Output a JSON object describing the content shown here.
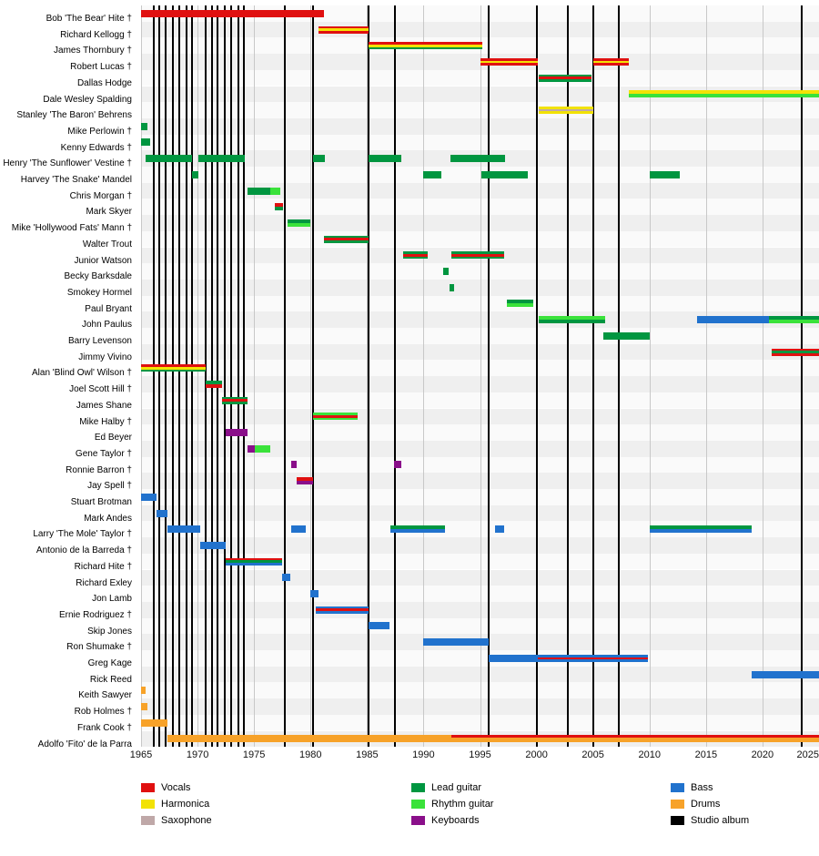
{
  "chart_data": {
    "type": "timeline",
    "description": "Band members timeline with instrument roles and studio album markers",
    "x_axis": {
      "start": 1965,
      "end": 2025,
      "tick_interval": 5,
      "ticks": [
        1965,
        1970,
        1975,
        1980,
        1985,
        1990,
        1995,
        2000,
        2005,
        2010,
        2015,
        2020,
        2025
      ]
    },
    "colors": {
      "vocals": "#e01010",
      "harmonica": "#f2e205",
      "saxophone": "#bfa8a8",
      "lead_guitar": "#009640",
      "rhythm_guitar": "#3ae23a",
      "keyboards": "#8a0f8a",
      "bass": "#2172cd",
      "drums": "#f7a229",
      "studio_album": "#000000"
    },
    "legend_columns": [
      [
        {
          "label": "Vocals",
          "key": "vocals"
        },
        {
          "label": "Harmonica",
          "key": "harmonica"
        },
        {
          "label": "Saxophone",
          "key": "saxophone"
        }
      ],
      [
        {
          "label": "Lead guitar",
          "key": "lead_guitar"
        },
        {
          "label": "Rhythm guitar",
          "key": "rhythm_guitar"
        },
        {
          "label": "Keyboards",
          "key": "keyboards"
        }
      ],
      [
        {
          "label": "Bass",
          "key": "bass"
        },
        {
          "label": "Drums",
          "key": "drums"
        },
        {
          "label": "Studio album",
          "key": "studio_album"
        }
      ]
    ],
    "album_lines": {
      "label": "Studio album",
      "years": [
        1966.1,
        1966.6,
        1967.2,
        1967.8,
        1968.4,
        1969.0,
        1969.5,
        1970.7,
        1971.3,
        1971.8,
        1972.4,
        1973.0,
        1973.6,
        1974.1,
        1977.7,
        1980.2,
        1985.1,
        1987.5,
        1995.8,
        2000.0,
        2002.8,
        2005.0,
        2007.3,
        2023.5
      ]
    },
    "members": [
      {
        "name": "Bob 'The Bear' Hite †",
        "bars": [
          {
            "from": 1965,
            "to": 1981.2,
            "parts": [
              "vocals"
            ]
          }
        ]
      },
      {
        "name": "Richard Kellogg †",
        "bars": [
          {
            "from": 1980.7,
            "to": 1985.1,
            "parts": [
              "vocals",
              "harmonica",
              "vocals"
            ]
          }
        ]
      },
      {
        "name": "James Thornbury †",
        "bars": [
          {
            "from": 1985.1,
            "to": 1995.2,
            "parts": [
              "vocals",
              "harmonica",
              "lead_guitar"
            ]
          }
        ]
      },
      {
        "name": "Robert Lucas †",
        "bars": [
          {
            "from": 1995.0,
            "to": 2000.1,
            "parts": [
              "vocals",
              "harmonica",
              "vocals"
            ]
          },
          {
            "from": 2005.0,
            "to": 2008.2,
            "parts": [
              "vocals",
              "harmonica",
              "vocals"
            ]
          }
        ]
      },
      {
        "name": "Dallas Hodge",
        "bars": [
          {
            "from": 2000.2,
            "to": 2004.9,
            "parts": [
              "lead_guitar",
              "vocals",
              "lead_guitar"
            ]
          }
        ]
      },
      {
        "name": "Dale Wesley Spalding",
        "bars": [
          {
            "from": 2008.2,
            "to": "present",
            "parts": [
              "harmonica",
              "rhythm_guitar"
            ]
          }
        ]
      },
      {
        "name": "Stanley 'The Baron' Behrens",
        "bars": [
          {
            "from": 2000.2,
            "to": 2005.0,
            "parts": [
              "harmonica",
              "saxophone",
              "harmonica"
            ]
          }
        ]
      },
      {
        "name": "Mike Perlowin †",
        "bars": [
          {
            "from": 1965,
            "to": 1965.6,
            "parts": [
              "lead_guitar"
            ]
          }
        ]
      },
      {
        "name": "Kenny Edwards †",
        "bars": [
          {
            "from": 1965,
            "to": 1965.8,
            "parts": [
              "lead_guitar"
            ]
          }
        ]
      },
      {
        "name": "Henry 'The Sunflower' Vestine †",
        "bars": [
          {
            "from": 1965.4,
            "to": 1969.5,
            "parts": [
              "lead_guitar"
            ]
          },
          {
            "from": 1970.1,
            "to": 1974.2,
            "parts": [
              "lead_guitar"
            ]
          },
          {
            "from": 1980.2,
            "to": 1981.3,
            "parts": [
              "lead_guitar"
            ]
          },
          {
            "from": 1985.1,
            "to": 1988.0,
            "parts": [
              "lead_guitar"
            ]
          },
          {
            "from": 1992.4,
            "to": 1997.2,
            "parts": [
              "lead_guitar"
            ]
          }
        ]
      },
      {
        "name": "Harvey 'The Snake' Mandel",
        "bars": [
          {
            "from": 1969.5,
            "to": 1970.1,
            "parts": [
              "lead_guitar"
            ]
          },
          {
            "from": 1990.0,
            "to": 1991.6,
            "parts": [
              "lead_guitar"
            ]
          },
          {
            "from": 1995.1,
            "to": 1999.2,
            "parts": [
              "lead_guitar"
            ]
          },
          {
            "from": 2010.0,
            "to": 2012.7,
            "parts": [
              "lead_guitar"
            ]
          }
        ]
      },
      {
        "name": "Chris Morgan †",
        "bars": [
          {
            "from": 1974.4,
            "to": 1976.4,
            "parts": [
              "lead_guitar"
            ]
          },
          {
            "from": 1976.4,
            "to": 1977.3,
            "parts": [
              "rhythm_guitar"
            ]
          }
        ]
      },
      {
        "name": "Mark Skyer",
        "bars": [
          {
            "from": 1976.8,
            "to": 1977.6,
            "parts": [
              "vocals",
              "lead_guitar"
            ]
          }
        ]
      },
      {
        "name": "Mike 'Hollywood Fats' Mann †",
        "bars": [
          {
            "from": 1978.0,
            "to": 1980.0,
            "parts": [
              "lead_guitar",
              "rhythm_guitar"
            ]
          }
        ]
      },
      {
        "name": "Walter Trout",
        "bars": [
          {
            "from": 1981.2,
            "to": 1985.1,
            "parts": [
              "lead_guitar",
              "vocals",
              "lead_guitar"
            ]
          }
        ]
      },
      {
        "name": "Junior Watson",
        "bars": [
          {
            "from": 1988.2,
            "to": 1990.4,
            "parts": [
              "lead_guitar",
              "vocals",
              "lead_guitar"
            ]
          },
          {
            "from": 1992.5,
            "to": 1997.1,
            "parts": [
              "lead_guitar",
              "vocals",
              "lead_guitar"
            ]
          }
        ]
      },
      {
        "name": "Becky Barksdale",
        "bars": [
          {
            "from": 1991.7,
            "to": 1992.2,
            "parts": [
              "lead_guitar"
            ]
          }
        ]
      },
      {
        "name": "Smokey Hormel",
        "bars": [
          {
            "from": 1992.3,
            "to": 1992.7,
            "parts": [
              "lead_guitar"
            ]
          }
        ]
      },
      {
        "name": "Paul Bryant",
        "bars": [
          {
            "from": 1997.4,
            "to": 1999.7,
            "parts": [
              "lead_guitar",
              "rhythm_guitar"
            ]
          }
        ]
      },
      {
        "name": "John Paulus",
        "bars": [
          {
            "from": 2000.2,
            "to": 2006.1,
            "parts": [
              "rhythm_guitar",
              "lead_guitar"
            ]
          },
          {
            "from": 2014.2,
            "to": 2020.6,
            "parts": [
              "bass"
            ]
          },
          {
            "from": 2020.6,
            "to": "present",
            "parts": [
              "lead_guitar",
              "rhythm_guitar"
            ]
          }
        ]
      },
      {
        "name": "Barry Levenson",
        "bars": [
          {
            "from": 2005.9,
            "to": 2010.0,
            "parts": [
              "lead_guitar"
            ]
          }
        ]
      },
      {
        "name": "Jimmy Vivino",
        "bars": [
          {
            "from": 2020.8,
            "to": "present",
            "parts": [
              "vocals",
              "lead_guitar",
              "vocals"
            ]
          }
        ]
      },
      {
        "name": "Alan 'Blind Owl' Wilson †",
        "bars": [
          {
            "from": 1965,
            "to": 1970.7,
            "parts": [
              "vocals",
              "harmonica",
              "lead_guitar"
            ]
          }
        ]
      },
      {
        "name": "Joel Scott Hill †",
        "bars": [
          {
            "from": 1970.7,
            "to": 1972.2,
            "parts": [
              "lead_guitar",
              "vocals"
            ]
          }
        ]
      },
      {
        "name": "James Shane",
        "bars": [
          {
            "from": 1972.2,
            "to": 1974.4,
            "parts": [
              "lead_guitar",
              "vocals",
              "lead_guitar"
            ]
          }
        ]
      },
      {
        "name": "Mike Halby †",
        "bars": [
          {
            "from": 1980.2,
            "to": 1984.2,
            "parts": [
              "rhythm_guitar",
              "vocals",
              "rhythm_guitar"
            ]
          }
        ]
      },
      {
        "name": "Ed Beyer",
        "bars": [
          {
            "from": 1972.5,
            "to": 1974.4,
            "parts": [
              "keyboards"
            ]
          }
        ]
      },
      {
        "name": "Gene Taylor †",
        "bars": [
          {
            "from": 1974.4,
            "to": 1975.1,
            "parts": [
              "keyboards"
            ]
          },
          {
            "from": 1975.1,
            "to": 1976.4,
            "parts": [
              "rhythm_guitar"
            ]
          }
        ]
      },
      {
        "name": "Ronnie Barron †",
        "bars": [
          {
            "from": 1978.3,
            "to": 1978.8,
            "parts": [
              "keyboards"
            ]
          },
          {
            "from": 1987.4,
            "to": 1988.0,
            "parts": [
              "keyboards"
            ]
          }
        ]
      },
      {
        "name": "Jay Spell †",
        "bars": [
          {
            "from": 1978.8,
            "to": 1980.2,
            "parts": [
              "vocals",
              "keyboards"
            ]
          }
        ]
      },
      {
        "name": "Stuart Brotman",
        "bars": [
          {
            "from": 1965,
            "to": 1966.4,
            "parts": [
              "bass"
            ]
          }
        ]
      },
      {
        "name": "Mark Andes",
        "bars": [
          {
            "from": 1966.4,
            "to": 1967.3,
            "parts": [
              "bass"
            ]
          }
        ]
      },
      {
        "name": "Larry 'The Mole' Taylor †",
        "bars": [
          {
            "from": 1967.3,
            "to": 1970.2,
            "parts": [
              "bass"
            ]
          },
          {
            "from": 1978.3,
            "to": 1979.6,
            "parts": [
              "bass"
            ]
          },
          {
            "from": 1987.1,
            "to": 1991.9,
            "parts": [
              "lead_guitar",
              "bass"
            ]
          },
          {
            "from": 1996.3,
            "to": 1997.1,
            "parts": [
              "bass"
            ]
          },
          {
            "from": 2010.0,
            "to": 2019.0,
            "parts": [
              "lead_guitar",
              "bass"
            ]
          }
        ]
      },
      {
        "name": "Antonio de la Barreda †",
        "bars": [
          {
            "from": 1970.2,
            "to": 1972.5,
            "parts": [
              "bass"
            ]
          }
        ]
      },
      {
        "name": "Richard Hite †",
        "bars": [
          {
            "from": 1972.5,
            "to": 1977.5,
            "parts": [
              "vocals",
              "lead_guitar",
              "bass"
            ]
          }
        ]
      },
      {
        "name": "Richard Exley",
        "bars": [
          {
            "from": 1977.5,
            "to": 1978.2,
            "parts": [
              "bass"
            ]
          }
        ]
      },
      {
        "name": "Jon Lamb",
        "bars": [
          {
            "from": 1980.0,
            "to": 1980.7,
            "parts": [
              "bass"
            ]
          }
        ]
      },
      {
        "name": "Ernie Rodriguez †",
        "bars": [
          {
            "from": 1980.5,
            "to": 1985.1,
            "parts": [
              "bass",
              "vocals",
              "bass"
            ]
          }
        ]
      },
      {
        "name": "Skip Jones",
        "bars": [
          {
            "from": 1985.1,
            "to": 1987.0,
            "parts": [
              "bass"
            ]
          }
        ]
      },
      {
        "name": "Ron Shumake †",
        "bars": [
          {
            "from": 1990.0,
            "to": 1995.8,
            "parts": [
              "bass"
            ]
          }
        ]
      },
      {
        "name": "Greg Kage",
        "bars": [
          {
            "from": 1995.8,
            "to": 2000.1,
            "parts": [
              "bass"
            ]
          },
          {
            "from": 2000.1,
            "to": 2009.9,
            "parts": [
              "bass",
              "vocals",
              "bass"
            ]
          }
        ]
      },
      {
        "name": "Rick Reed",
        "bars": [
          {
            "from": 2019.0,
            "to": "present",
            "parts": [
              "bass"
            ]
          }
        ]
      },
      {
        "name": "Keith Sawyer",
        "bars": [
          {
            "from": 1965,
            "to": 1965.4,
            "parts": [
              "drums"
            ]
          }
        ]
      },
      {
        "name": "Rob Holmes †",
        "bars": [
          {
            "from": 1965,
            "to": 1965.6,
            "parts": [
              "drums"
            ]
          }
        ]
      },
      {
        "name": "Frank Cook †",
        "bars": [
          {
            "from": 1965,
            "to": 1967.3,
            "parts": [
              "drums"
            ]
          }
        ]
      },
      {
        "name": "Adolfo 'Fito' de la Parra",
        "bars": [
          {
            "from": 1967.3,
            "to": 1992.5,
            "parts": [
              "drums"
            ]
          },
          {
            "from": 1992.5,
            "to": "present",
            "parts": [
              "vocals",
              "drums",
              "drums"
            ]
          }
        ]
      }
    ]
  }
}
